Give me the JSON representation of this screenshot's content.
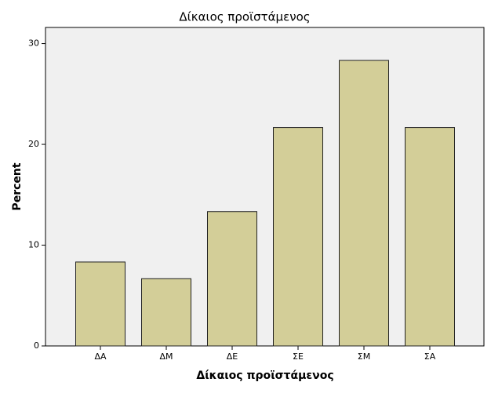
{
  "chart_data": {
    "type": "bar",
    "title": "Δίκαιος προϊστάμενος",
    "x_label": "Δίκαιος προϊστάμενος",
    "y_label": "Percent",
    "categories": [
      "ΔΑ",
      "ΔΜ",
      "ΔΕ",
      "ΣΕ",
      "ΣΜ",
      "ΣΑ"
    ],
    "values": [
      8.33,
      6.67,
      13.33,
      21.67,
      28.33,
      21.67
    ],
    "color": "#d3ce98",
    "ylim": [
      0,
      31.6
    ],
    "yticks": [
      0,
      10,
      20,
      30
    ],
    "grid": false
  }
}
